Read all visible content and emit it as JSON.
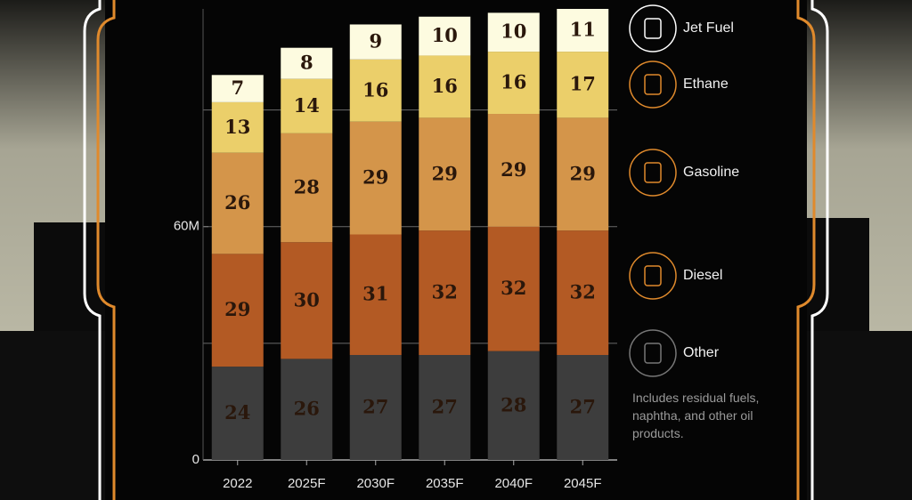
{
  "chart_data": {
    "type": "stacked_bar",
    "categories": [
      "2022",
      "2025F",
      "2030F",
      "2035F",
      "2040F",
      "2045F"
    ],
    "series": [
      {
        "name": "Other",
        "color": "#3d3d3d",
        "values": [
          24,
          26,
          27,
          27,
          28,
          27
        ]
      },
      {
        "name": "Diesel",
        "color": "#b35a24",
        "values": [
          29,
          30,
          31,
          32,
          32,
          32
        ]
      },
      {
        "name": "Gasoline",
        "color": "#d4954a",
        "values": [
          26,
          28,
          29,
          29,
          29,
          29
        ]
      },
      {
        "name": "Ethane",
        "color": "#ebcf6a",
        "values": [
          13,
          14,
          16,
          16,
          16,
          17
        ]
      },
      {
        "name": "Jet Fuel",
        "color": "#fdfbe0",
        "values": [
          7,
          8,
          9,
          10,
          10,
          11
        ]
      }
    ],
    "ylim": [
      0,
      116
    ],
    "yticks": [
      0,
      {
        "value": 60,
        "label": "60M"
      }
    ],
    "ygrid": [
      30,
      60,
      90
    ],
    "note": "Includes residual fuels, naphtha, and other oil products."
  }
}
